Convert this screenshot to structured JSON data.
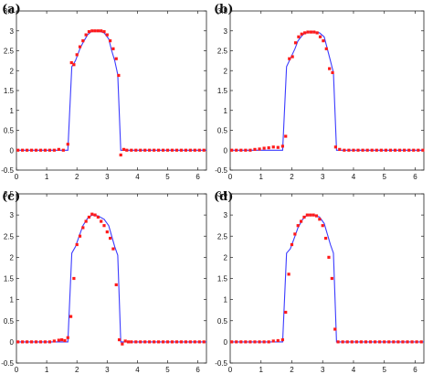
{
  "colors": {
    "line": "#3b3bff",
    "marker": "#ff1a1a",
    "axis": "#222222",
    "background": "#ffffff"
  },
  "chart_data": [
    {
      "type": "scatter",
      "panel_label": "(a)",
      "xlim": [
        0,
        6.2832
      ],
      "ylim": [
        -0.5,
        3.5
      ],
      "xticks": [
        0,
        1,
        2,
        3,
        4,
        5,
        6
      ],
      "yticks": [
        -0.5,
        0,
        0.5,
        1,
        1.5,
        2,
        2.5,
        3,
        3.5
      ],
      "xtick_labels": [
        "0",
        "1",
        "2",
        "3",
        "4",
        "5",
        "6"
      ],
      "ytick_labels": [
        "-0.5",
        "0",
        "0.5",
        "1",
        "1.5",
        "2",
        "2.5",
        "3",
        "3.5"
      ],
      "grid": false,
      "series": [
        {
          "kind": "line",
          "x": [
            0,
            1.7,
            1.83,
            1.95,
            2.1,
            2.2,
            2.35,
            2.5,
            2.7,
            2.9,
            3.05,
            3.15,
            3.25,
            3.35,
            3.45,
            6.2832
          ],
          "y": [
            0,
            0,
            2.1,
            2.25,
            2.55,
            2.7,
            2.9,
            3.0,
            3.0,
            2.95,
            2.8,
            2.5,
            2.25,
            1.9,
            0,
            0
          ]
        },
        {
          "kind": "markers",
          "x": [
            0.05,
            0.2,
            0.35,
            0.5,
            0.65,
            0.8,
            0.95,
            1.1,
            1.25,
            1.4,
            1.55,
            1.7,
            1.82,
            1.9,
            2.0,
            2.1,
            2.2,
            2.3,
            2.4,
            2.5,
            2.6,
            2.7,
            2.8,
            2.9,
            3.0,
            3.1,
            3.2,
            3.3,
            3.38,
            3.45,
            3.55,
            3.65,
            3.8,
            3.95,
            4.1,
            4.25,
            4.4,
            4.55,
            4.7,
            4.85,
            5.0,
            5.15,
            5.3,
            5.45,
            5.6,
            5.75,
            5.9,
            6.05,
            6.2
          ],
          "y": [
            0,
            0,
            0,
            0,
            0,
            0,
            0,
            0,
            0,
            0.02,
            0,
            0.15,
            2.2,
            2.15,
            2.4,
            2.6,
            2.75,
            2.9,
            2.98,
            3.0,
            3.0,
            3.0,
            3.0,
            2.98,
            2.9,
            2.75,
            2.55,
            2.3,
            1.88,
            -0.12,
            0.02,
            0,
            0,
            0,
            0,
            0,
            0,
            0,
            0,
            0,
            0,
            0,
            0,
            0,
            0,
            0,
            0,
            0,
            0
          ]
        }
      ]
    },
    {
      "type": "scatter",
      "panel_label": "(b)",
      "xlim": [
        0,
        6.2832
      ],
      "ylim": [
        -0.5,
        3.5
      ],
      "xticks": [
        0,
        1,
        2,
        3,
        4,
        5,
        6
      ],
      "yticks": [
        -0.5,
        0,
        0.5,
        1,
        1.5,
        2,
        2.5,
        3,
        3.5
      ],
      "xtick_labels": [
        "0",
        "1",
        "2",
        "3",
        "4",
        "5",
        "6"
      ],
      "ytick_labels": [
        "-0.5",
        "0",
        "0.5",
        "1",
        "1.5",
        "2",
        "2.5",
        "3",
        "3.5"
      ],
      "grid": false,
      "series": [
        {
          "kind": "line",
          "x": [
            0,
            1.7,
            1.83,
            1.95,
            2.1,
            2.2,
            2.35,
            2.5,
            2.7,
            2.9,
            3.05,
            3.15,
            3.25,
            3.35,
            3.45,
            6.2832
          ],
          "y": [
            0,
            0,
            2.1,
            2.3,
            2.55,
            2.75,
            2.9,
            2.97,
            2.98,
            2.95,
            2.85,
            2.55,
            2.25,
            1.95,
            0,
            0
          ]
        },
        {
          "kind": "markers",
          "x": [
            0.05,
            0.2,
            0.35,
            0.5,
            0.65,
            0.8,
            0.95,
            1.1,
            1.25,
            1.4,
            1.55,
            1.7,
            1.8,
            1.92,
            2.02,
            2.12,
            2.22,
            2.32,
            2.42,
            2.52,
            2.62,
            2.72,
            2.82,
            2.92,
            3.02,
            3.12,
            3.22,
            3.32,
            3.42,
            3.55,
            3.7,
            3.85,
            4.0,
            4.15,
            4.3,
            4.45,
            4.6,
            4.75,
            4.9,
            5.05,
            5.2,
            5.35,
            5.5,
            5.65,
            5.8,
            5.95,
            6.1,
            6.25
          ],
          "y": [
            0,
            0,
            0,
            0,
            0,
            0.02,
            0.03,
            0.05,
            0.06,
            0.08,
            0.07,
            0.1,
            0.35,
            2.3,
            2.35,
            2.7,
            2.85,
            2.92,
            2.95,
            2.97,
            2.97,
            2.97,
            2.95,
            2.85,
            2.75,
            2.55,
            2.05,
            1.95,
            0.08,
            0.02,
            0,
            0,
            0,
            0,
            0,
            0,
            0,
            0,
            0,
            0,
            0,
            0,
            0,
            0,
            0,
            0,
            0,
            0
          ]
        }
      ]
    },
    {
      "type": "scatter",
      "panel_label": "(c)",
      "xlim": [
        0,
        6.2832
      ],
      "ylim": [
        -0.5,
        3.5
      ],
      "xticks": [
        0,
        1,
        2,
        3,
        4,
        5,
        6
      ],
      "yticks": [
        -0.5,
        0,
        0.5,
        1,
        1.5,
        2,
        2.5,
        3,
        3.5
      ],
      "xtick_labels": [
        "0",
        "1",
        "2",
        "3",
        "4",
        "5",
        "6"
      ],
      "ytick_labels": [
        "-0.5",
        "0",
        "0.5",
        "1",
        "1.5",
        "2",
        "2.5",
        "3",
        "3.5"
      ],
      "grid": false,
      "series": [
        {
          "kind": "line",
          "x": [
            0,
            1.7,
            1.83,
            1.95,
            2.1,
            2.2,
            2.35,
            2.5,
            2.7,
            2.9,
            3.05,
            3.15,
            3.25,
            3.35,
            3.45,
            6.2832
          ],
          "y": [
            0,
            0,
            2.1,
            2.25,
            2.55,
            2.75,
            2.92,
            3.0,
            2.98,
            2.9,
            2.75,
            2.5,
            2.25,
            2.05,
            0,
            0
          ]
        },
        {
          "kind": "markers",
          "x": [
            0.05,
            0.2,
            0.35,
            0.5,
            0.65,
            0.8,
            0.95,
            1.1,
            1.25,
            1.4,
            1.5,
            1.6,
            1.7,
            1.8,
            1.9,
            2.0,
            2.1,
            2.2,
            2.3,
            2.4,
            2.5,
            2.6,
            2.7,
            2.8,
            2.9,
            3.0,
            3.1,
            3.2,
            3.3,
            3.4,
            3.5,
            3.6,
            3.7,
            3.8,
            3.95,
            4.1,
            4.25,
            4.4,
            4.55,
            4.7,
            4.85,
            5.0,
            5.15,
            5.3,
            5.45,
            5.6,
            5.75,
            5.9,
            6.05,
            6.2
          ],
          "y": [
            0,
            0,
            0,
            0,
            0,
            0,
            0,
            0,
            0.02,
            0.04,
            0.05,
            0.03,
            0.1,
            0.6,
            1.5,
            2.3,
            2.5,
            2.7,
            2.85,
            2.95,
            3.02,
            3.0,
            2.95,
            2.85,
            2.75,
            2.6,
            2.45,
            2.2,
            1.35,
            0.05,
            -0.05,
            0.02,
            0,
            0,
            0,
            0,
            0,
            0,
            0,
            0,
            0,
            0,
            0,
            0,
            0,
            0,
            0,
            0,
            0,
            0
          ]
        }
      ]
    },
    {
      "type": "scatter",
      "panel_label": "(d)",
      "xlim": [
        0,
        6.2832
      ],
      "ylim": [
        -0.5,
        3.5
      ],
      "xticks": [
        0,
        1,
        2,
        3,
        4,
        5,
        6
      ],
      "yticks": [
        -0.5,
        0,
        0.5,
        1,
        1.5,
        2,
        2.5,
        3,
        3.5
      ],
      "xtick_labels": [
        "0",
        "1",
        "2",
        "3",
        "4",
        "5",
        "6"
      ],
      "ytick_labels": [
        "-0.5",
        "0",
        "0.5",
        "1",
        "1.5",
        "2",
        "2.5",
        "3",
        "3.5"
      ],
      "grid": false,
      "series": [
        {
          "kind": "line",
          "x": [
            0,
            1.7,
            1.83,
            1.95,
            2.1,
            2.2,
            2.35,
            2.5,
            2.7,
            2.9,
            3.05,
            3.15,
            3.25,
            3.35,
            3.45,
            6.2832
          ],
          "y": [
            0,
            0,
            2.1,
            2.2,
            2.5,
            2.7,
            2.9,
            3.0,
            3.0,
            2.95,
            2.8,
            2.55,
            2.3,
            2.1,
            0,
            0
          ]
        },
        {
          "kind": "markers",
          "x": [
            0.05,
            0.2,
            0.35,
            0.5,
            0.65,
            0.8,
            0.95,
            1.1,
            1.25,
            1.4,
            1.55,
            1.7,
            1.8,
            1.9,
            2.0,
            2.1,
            2.2,
            2.3,
            2.4,
            2.5,
            2.6,
            2.7,
            2.8,
            2.9,
            3.0,
            3.1,
            3.2,
            3.3,
            3.4,
            3.5,
            3.65,
            3.8,
            3.95,
            4.1,
            4.25,
            4.4,
            4.55,
            4.7,
            4.85,
            5.0,
            5.15,
            5.3,
            5.45,
            5.6,
            5.75,
            5.9,
            6.05,
            6.2
          ],
          "y": [
            0,
            0,
            0,
            0,
            0,
            0,
            0,
            0,
            0,
            0.02,
            0.03,
            0.05,
            0.7,
            1.6,
            2.3,
            2.55,
            2.75,
            2.85,
            2.95,
            3.0,
            3.0,
            3.0,
            2.98,
            2.9,
            2.75,
            2.45,
            2.0,
            1.5,
            0.3,
            0,
            0,
            0,
            0,
            0,
            0,
            0,
            0,
            0,
            0,
            0,
            0,
            0,
            0,
            0,
            0,
            0,
            0,
            0
          ]
        }
      ]
    }
  ]
}
